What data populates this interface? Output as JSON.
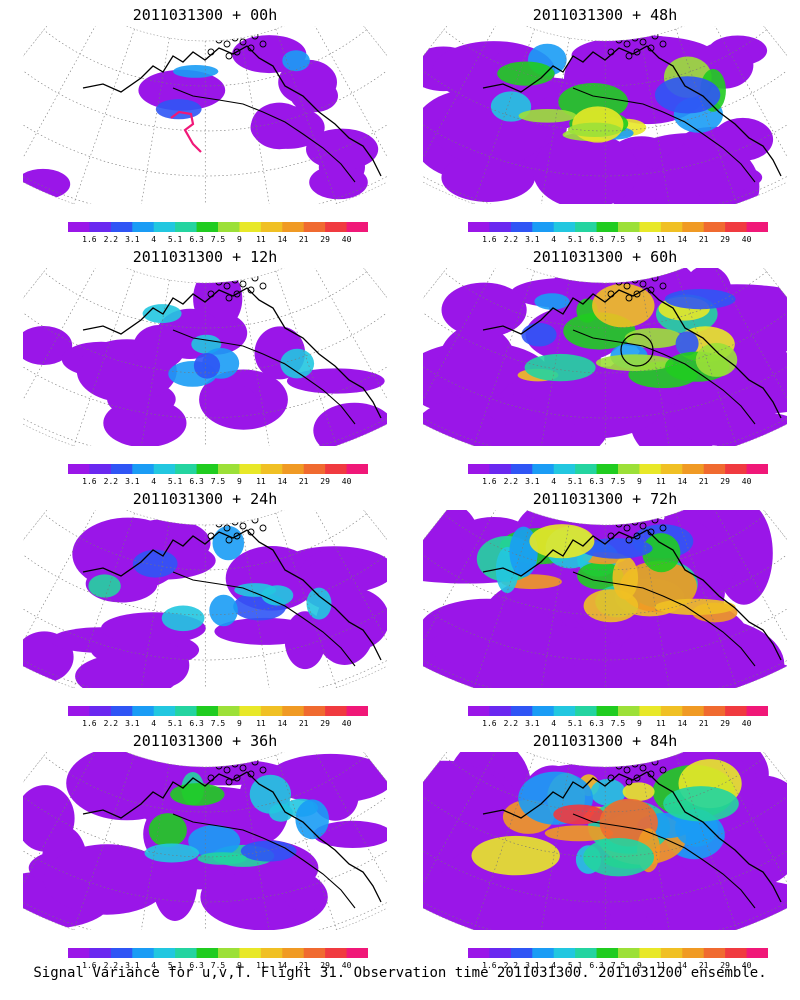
{
  "panels": [
    {
      "title": "2011031300 + 00h",
      "intensity": 0
    },
    {
      "title": "2011031300 + 48h",
      "intensity": 4
    },
    {
      "title": "2011031300 + 12h",
      "intensity": 1
    },
    {
      "title": "2011031300 + 60h",
      "intensity": 5
    },
    {
      "title": "2011031300 + 24h",
      "intensity": 2
    },
    {
      "title": "2011031300 + 72h",
      "intensity": 6
    },
    {
      "title": "2011031300 + 36h",
      "intensity": 3
    },
    {
      "title": "2011031300 + 84h",
      "intensity": 7
    }
  ],
  "colorbar": {
    "labels": [
      "1.6",
      "2.2",
      "3.1",
      "4",
      "5.1",
      "6.3",
      "7.5",
      "9",
      "11",
      "14",
      "21",
      "29",
      "40"
    ],
    "colors": [
      "#9a16e8",
      "#6a28f0",
      "#2f55f5",
      "#1a9cf5",
      "#22c7e0",
      "#24d4a0",
      "#20cc20",
      "#9ce038",
      "#e8e828",
      "#f0c024",
      "#f09a24",
      "#f06a30",
      "#f03a40",
      "#f01878"
    ]
  },
  "footer": "Signal Variance for u,v,T. Flight 31. Observation time 2011031300. 2011031200 ensemble."
}
